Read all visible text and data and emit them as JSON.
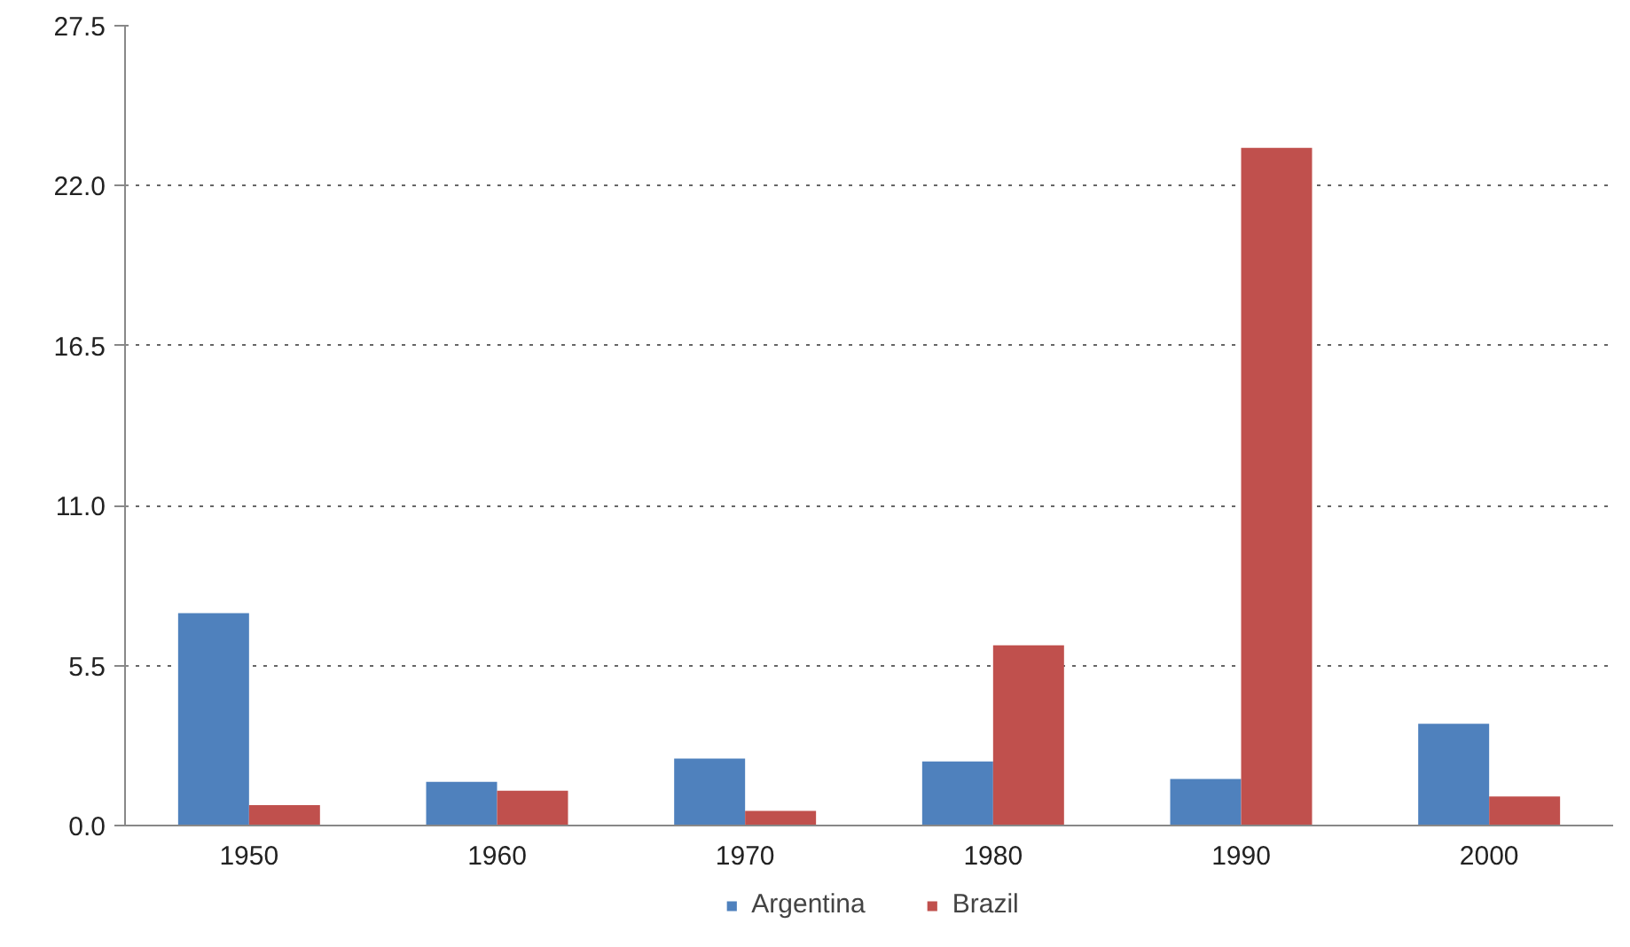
{
  "chart_data": {
    "type": "bar",
    "categories": [
      "1950",
      "1960",
      "1970",
      "1980",
      "1990",
      "2000"
    ],
    "series": [
      {
        "name": "Argentina",
        "color": "#4f81bd",
        "values": [
          7.3,
          1.5,
          2.3,
          2.2,
          1.6,
          3.5
        ]
      },
      {
        "name": "Brazil",
        "color": "#c0504d",
        "values": [
          0.7,
          1.2,
          0.5,
          6.2,
          23.3,
          1.0
        ]
      }
    ],
    "ylim": [
      0,
      27.5
    ],
    "yticks": [
      {
        "value": 0,
        "label": "0.0"
      },
      5.5,
      {
        "value": 11,
        "label": "11.0"
      },
      16.5,
      {
        "value": 22,
        "label": "22.0"
      },
      27.5
    ],
    "grid": "y",
    "legend": "bottom"
  }
}
